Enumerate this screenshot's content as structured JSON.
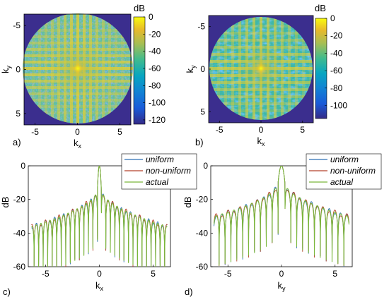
{
  "chart_data": [
    {
      "panel_label": "a)",
      "type": "heatmap",
      "description_of_content": "k-space magnitude map, circular support, bright cross at center",
      "xlabel": "k",
      "xlabel_sub": "x",
      "ylabel": "k",
      "ylabel_sub": "y",
      "xlim": [
        -6.3,
        6.3
      ],
      "ylim": [
        -6.3,
        6.3
      ],
      "xticks": [
        -5,
        0,
        5
      ],
      "yticks": [
        -5,
        0,
        5
      ],
      "colorbar": {
        "title": "dB",
        "min": -125,
        "max": 0,
        "ticks": [
          0,
          -20,
          -40,
          -60,
          -80,
          -100,
          -120
        ]
      },
      "colors": {
        "outside": "#3b2e8e",
        "floor": "#5fc2a0",
        "peak": "#f9fb0e"
      }
    },
    {
      "panel_label": "b)",
      "type": "heatmap",
      "xlabel": "k",
      "xlabel_sub": "x",
      "ylabel": "k",
      "ylabel_sub": "y",
      "xlim": [
        -6.3,
        6.3
      ],
      "ylim": [
        -6.3,
        6.3
      ],
      "xticks": [
        -5,
        0,
        5
      ],
      "yticks": [
        -5,
        0,
        5
      ],
      "colorbar": {
        "title": "dB",
        "min": -115,
        "max": 0,
        "ticks": [
          0,
          -20,
          -40,
          -60,
          -80,
          -100
        ]
      },
      "colors": {
        "outside": "#3b2e8e",
        "floor": "#3fb2b8",
        "peak": "#f9fb0e"
      }
    },
    {
      "panel_label": "c)",
      "type": "line",
      "xlabel": "k",
      "xlabel_sub": "x",
      "ylabel": "dB",
      "xlim": [
        -6.6,
        6.6
      ],
      "ylim": [
        -60,
        0
      ],
      "xticks": [
        -5,
        0,
        5
      ],
      "yticks": [
        0,
        -20,
        -40,
        -60
      ],
      "legend_position": "top-right",
      "series": [
        {
          "name": "uniform",
          "color": "#2c6fb3"
        },
        {
          "name": "non-uniform",
          "color": "#b5402a"
        },
        {
          "name": "actual",
          "color": "#7ab83a"
        }
      ],
      "profile": {
        "mainlobe_half_width": 0.18,
        "sidelobe_spacing": 0.42,
        "first_sidelobe_db": -14,
        "edge_level_db": -36,
        "x_extent": 6.3
      }
    },
    {
      "panel_label": "d)",
      "type": "line",
      "xlabel": "k",
      "xlabel_sub": "y",
      "ylabel": "dB",
      "xlim": [
        -6.6,
        6.6
      ],
      "ylim": [
        -60,
        0
      ],
      "xticks": [
        -5,
        0,
        5
      ],
      "yticks": [
        0,
        -20,
        -40,
        -60
      ],
      "legend_position": "top-right",
      "series": [
        {
          "name": "uniform",
          "color": "#2c6fb3"
        },
        {
          "name": "non-uniform",
          "color": "#b5402a"
        },
        {
          "name": "actual",
          "color": "#7ab83a"
        }
      ],
      "profile": {
        "mainlobe_half_width": 0.32,
        "sidelobe_spacing": 0.55,
        "first_sidelobe_db": -10,
        "edge_level_db": -30,
        "x_extent": 6.3
      }
    }
  ]
}
